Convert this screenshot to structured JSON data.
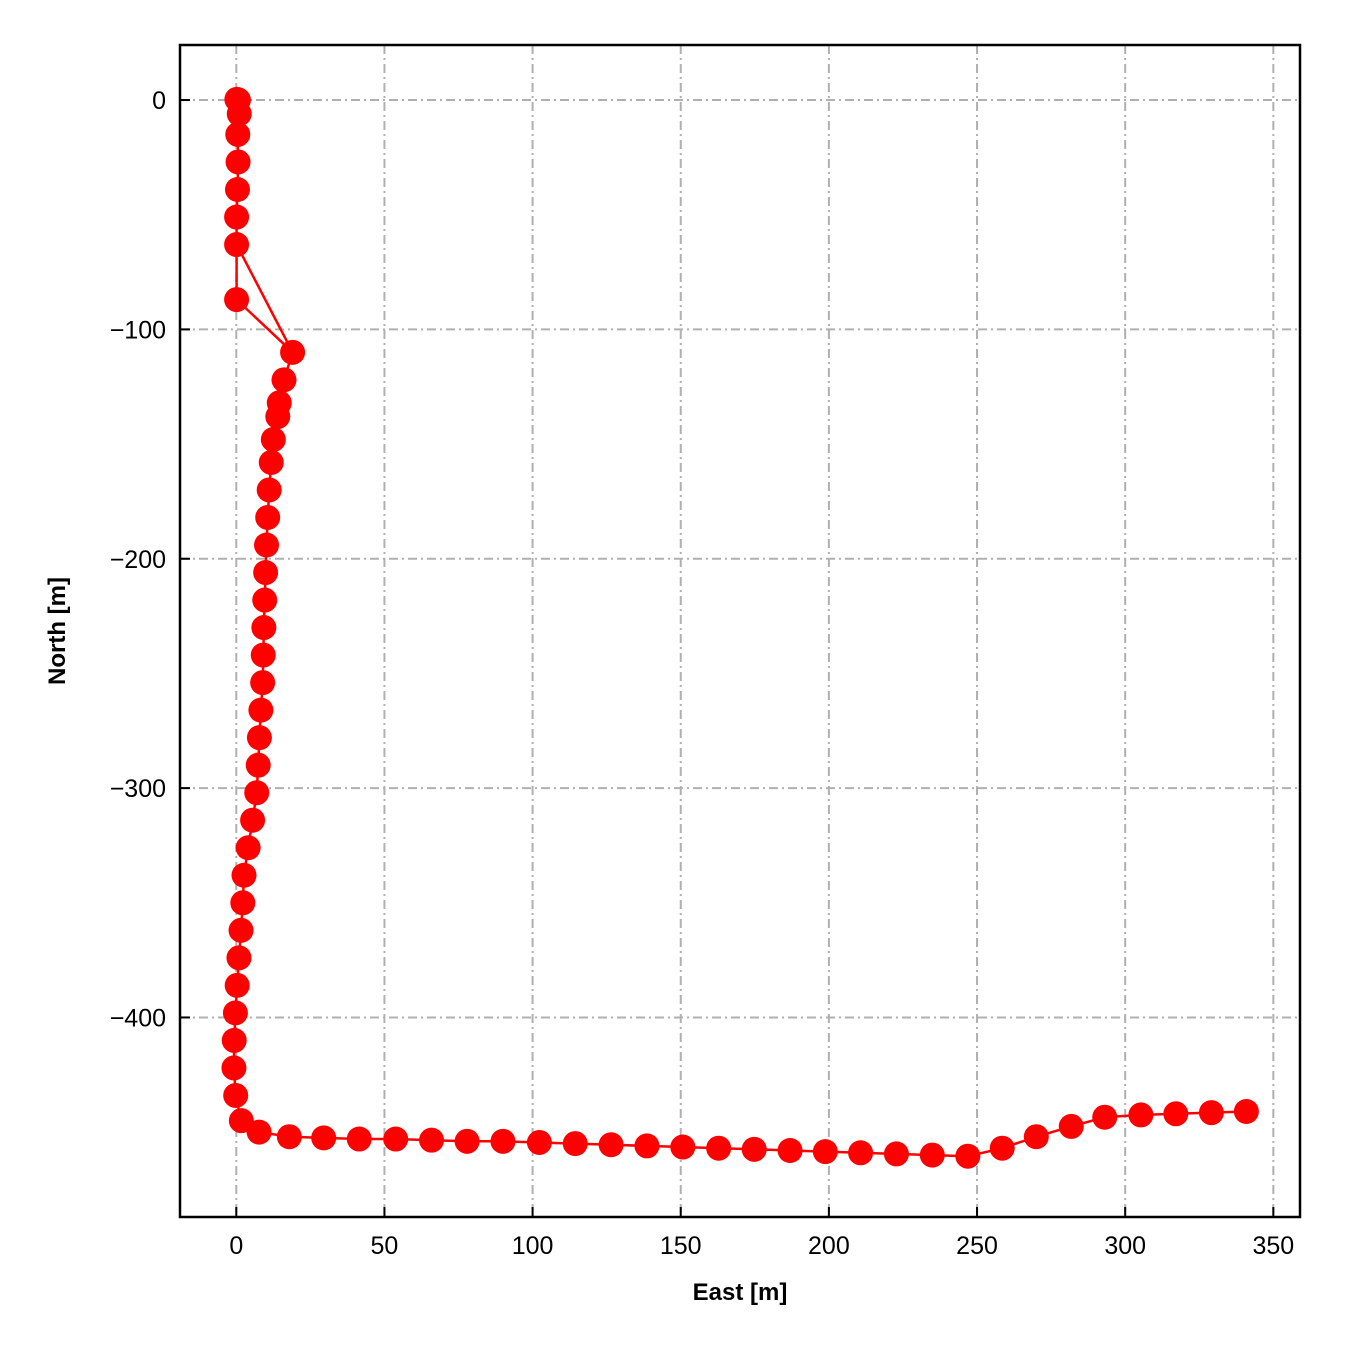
{
  "chart_data": {
    "type": "scatter",
    "title": "",
    "xlabel": "East [m]",
    "ylabel": "North [m]",
    "xlim": [
      -19,
      359
    ],
    "ylim": [
      -487,
      24
    ],
    "xticks": [
      0,
      50,
      100,
      150,
      200,
      250,
      300,
      350
    ],
    "xtick_labels": [
      "0",
      "50",
      "100",
      "150",
      "200",
      "250",
      "300",
      "350"
    ],
    "yticks": [
      0,
      -100,
      -200,
      -300,
      -400
    ],
    "ytick_labels": [
      "0",
      "−100",
      "−200",
      "−300",
      "−400"
    ],
    "grid": true,
    "grid_style": "dash-dot",
    "legend": "none",
    "colors": {
      "series": "#ff0000",
      "grid": "#b0b0b0",
      "axes": "#000000"
    },
    "series": [
      {
        "line": true,
        "marker": "circle",
        "x": [
          0.7,
          0.2,
          0.7,
          1.0,
          0.5,
          0.6,
          0.4,
          0.1,
          0.1,
          19.0,
          16.1,
          14.5,
          14.0,
          12.5,
          11.8,
          11.1,
          10.6,
          10.2,
          9.9,
          9.6,
          9.3,
          9.1,
          8.9,
          8.3,
          7.8,
          7.4,
          6.9,
          5.5,
          4.0,
          2.6,
          2.2,
          1.6,
          0.9,
          0.3,
          -0.3,
          -0.7,
          -0.8,
          -0.2,
          1.7,
          7.7,
          17.9,
          29.5,
          41.5,
          53.8,
          65.9,
          77.9,
          90.0,
          102.3,
          114.4,
          126.5,
          138.6,
          150.7,
          162.8,
          174.8,
          186.9,
          198.8,
          210.7,
          222.8,
          234.9,
          246.9,
          258.5,
          270.0,
          281.8,
          293.1,
          305.3,
          317.1,
          329.1,
          340.9
        ],
        "y": [
          0.0,
          0.3,
          0.0,
          -6.0,
          -15.0,
          -27.0,
          -39.0,
          -51.0,
          -63.0,
          -110.0,
          -122.0,
          -132.0,
          -138.0,
          -148.0,
          -158.0,
          -170.0,
          -182.0,
          -194.0,
          -206.0,
          -218.0,
          -230.0,
          -242.0,
          -254.0,
          -266.0,
          -278.0,
          -290.0,
          -302.0,
          -314.0,
          -326.0,
          -338.0,
          -350.0,
          -362.0,
          -374.0,
          -386.0,
          -398.0,
          -410.0,
          -422.0,
          -434.0,
          -445.0,
          -450.0,
          -452.0,
          -452.5,
          -453.0,
          -453.0,
          -453.5,
          -454.0,
          -454.0,
          -454.5,
          -455.0,
          -455.5,
          -456.0,
          -456.5,
          -457.0,
          -457.5,
          -458.0,
          -458.5,
          -459.0,
          -459.5,
          -460.0,
          -460.5,
          -457.0,
          -452.0,
          -447.5,
          -443.5,
          -442.5,
          -442.0,
          -441.5,
          -441.0
        ]
      }
    ],
    "extra_segments": [
      {
        "x": [
          0.1,
          0.1
        ],
        "y": [
          -63.0,
          -87.0
        ]
      },
      {
        "x": [
          0.1,
          19.0
        ],
        "y": [
          -87.0,
          -110.0
        ]
      }
    ]
  }
}
